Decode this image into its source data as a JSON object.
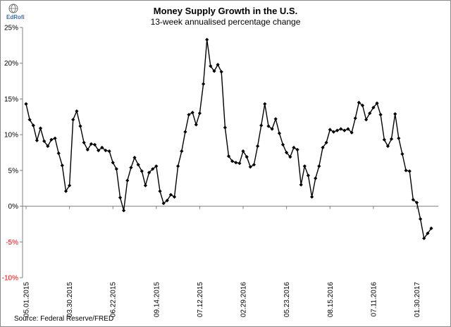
{
  "logo": {
    "text": "EdRofi",
    "icon": "globe-logo-icon"
  },
  "chart_data": {
    "type": "line",
    "title": "Money Supply Growth in the U.S.",
    "subtitle": "13-week annualised percentage change",
    "source": "Source: Federal Reserve/FRED",
    "ylim": [
      -10,
      25
    ],
    "yticks": [
      {
        "value": 25,
        "label": "25%"
      },
      {
        "value": 20,
        "label": "20%"
      },
      {
        "value": 15,
        "label": "15%"
      },
      {
        "value": 10,
        "label": "10%"
      },
      {
        "value": 5,
        "label": "5%"
      },
      {
        "value": 0,
        "label": "0%"
      },
      {
        "value": -5,
        "label": "-5%"
      },
      {
        "value": -10,
        "label": "-10%"
      }
    ],
    "negative_tick_color": "#ff0000",
    "line_color": "#000000",
    "grid": false,
    "xticks": [
      {
        "index": 0,
        "label": "05.01.2015"
      },
      {
        "index": 12,
        "label": "03.30.2015"
      },
      {
        "index": 24,
        "label": "06.22.2015"
      },
      {
        "index": 36,
        "label": "09.14.2015"
      },
      {
        "index": 48,
        "label": "07.12.2015"
      },
      {
        "index": 60,
        "label": "02.29.2016"
      },
      {
        "index": 72,
        "label": "05.23.2016"
      },
      {
        "index": 84,
        "label": "08.15.2016"
      },
      {
        "index": 96,
        "label": "07.11.2016"
      },
      {
        "index": 108,
        "label": "01.30.2017"
      }
    ],
    "values": [
      14.3,
      12.1,
      11.3,
      9.2,
      10.9,
      9.1,
      8.4,
      9.3,
      9.5,
      7.4,
      5.7,
      2.1,
      2.9,
      12.1,
      13.3,
      11.2,
      8.9,
      7.9,
      8.7,
      8.6,
      7.8,
      8.2,
      7.8,
      7.7,
      6.1,
      5.2,
      1.2,
      -0.6,
      3.6,
      5.4,
      6.8,
      5.8,
      4.9,
      2.9,
      4.7,
      5.2,
      5.6,
      2.1,
      0.4,
      0.8,
      1.6,
      1.3,
      5.6,
      7.7,
      10.4,
      12.8,
      13.1,
      11.4,
      13.0,
      17.1,
      23.3,
      19.6,
      18.9,
      19.8,
      18.8,
      11.0,
      7.0,
      6.3,
      6.1,
      6.0,
      7.7,
      6.9,
      5.5,
      5.8,
      8.4,
      11.3,
      14.3,
      11.2,
      10.8,
      12.2,
      10.2,
      8.6,
      7.5,
      6.9,
      8.2,
      7.9,
      3.0,
      5.6,
      4.3,
      1.3,
      3.9,
      5.6,
      8.2,
      8.9,
      10.7,
      10.4,
      10.6,
      10.8,
      10.6,
      10.8,
      10.3,
      12.3,
      14.5,
      14.1,
      12.1,
      13.0,
      13.8,
      14.4,
      12.8,
      9.3,
      8.4,
      9.4,
      12.9,
      9.5,
      7.3,
      5.0,
      4.9,
      0.9,
      0.5,
      -1.8,
      -4.5,
      -3.8,
      -3.1
    ]
  }
}
